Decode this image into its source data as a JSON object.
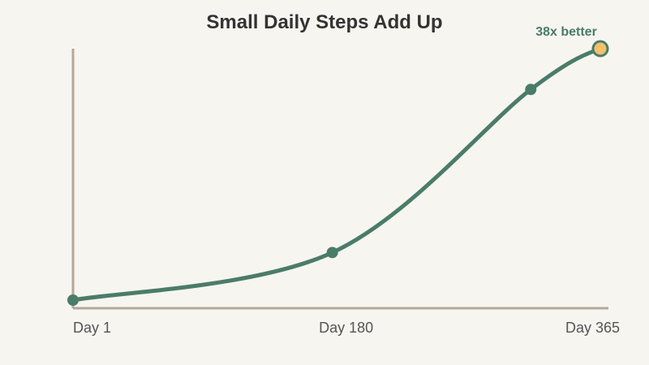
{
  "chart_data": {
    "type": "line",
    "title": "Small Daily Steps Add Up",
    "xlabel": "",
    "ylabel": "",
    "x_ticks": [
      {
        "value": 1,
        "label": "Day 1"
      },
      {
        "value": 180,
        "label": "Day 180"
      },
      {
        "value": 365,
        "label": "Day 365"
      }
    ],
    "xlim": [
      1,
      365
    ],
    "ylim": [
      1,
      38
    ],
    "grid": false,
    "series": [
      {
        "points": [
          {
            "x": 1,
            "y": 1
          },
          {
            "x": 180,
            "y": 8
          },
          {
            "x": 317,
            "y": 32
          },
          {
            "x": 365,
            "y": 38
          }
        ]
      }
    ],
    "annotation": {
      "x": 365,
      "y": 38,
      "text": "38x better"
    },
    "colors": {
      "line": "#4a7c6a",
      "axis": "#b5a898",
      "highlight": "#f3c06b",
      "background": "#f7f5f0"
    }
  }
}
